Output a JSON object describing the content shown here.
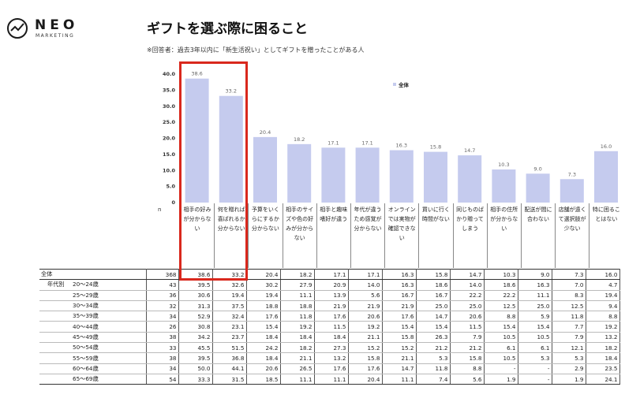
{
  "brand": {
    "name": "NEO",
    "sub": "MARKETING"
  },
  "title": "ギフトを選ぶ際に困ること",
  "note": "※回答者：過去3年以内に「新生活祝い」としてギフトを贈ったことがある人",
  "colors": {
    "bar": "#c5cbee",
    "highlight": "#d9281d",
    "brand": "#1a1a1a"
  },
  "chart_data": {
    "type": "bar",
    "categories": [
      "相手の好みが分からない",
      "何を贈れば喜ばれるか分からない",
      "予算をいくらにするか分からない",
      "相手のサイズや色の好みが分からない",
      "相手と趣味嗜好が違う",
      "年代が違うため感覚が分からない",
      "オンラインでは実物が確認できない",
      "買いに行く時間がない",
      "同じものばかり贈ってしまう",
      "相手の住所が分からない",
      "配送が間に合わない",
      "店舗が遠くて選択肢が少ない",
      "特に困ることはない"
    ],
    "series": [
      {
        "name": "全体",
        "values": [
          38.6,
          33.2,
          20.4,
          18.2,
          17.1,
          17.1,
          16.3,
          15.8,
          14.7,
          10.3,
          9.0,
          7.3,
          16.0
        ]
      }
    ],
    "value_labels": [
      "38.6",
      "33.2",
      "20.4",
      "18.2",
      "17.1",
      "17.1",
      "16.3",
      "15.8",
      "14.7",
      "10.3",
      "9.0",
      "7.3",
      "16.0"
    ],
    "ylim": [
      0,
      40
    ],
    "yticks": [
      "40.0",
      "35.0",
      "30.0",
      "25.0",
      "20.0",
      "15.0",
      "10.0",
      "5.0",
      "0"
    ],
    "legend": "全体",
    "legend_position": "top-right"
  },
  "table": {
    "n_label": "n",
    "group_label": "年代別",
    "rows": [
      {
        "segment": "全体",
        "n": "368",
        "values": [
          "38.6",
          "33.2",
          "20.4",
          "18.2",
          "17.1",
          "17.1",
          "16.3",
          "15.8",
          "14.7",
          "10.3",
          "9.0",
          "7.3",
          "16.0"
        ]
      },
      {
        "segment": "20～24歳",
        "n": "43",
        "values": [
          "39.5",
          "32.6",
          "30.2",
          "27.9",
          "20.9",
          "14.0",
          "16.3",
          "18.6",
          "14.0",
          "18.6",
          "16.3",
          "7.0",
          "4.7"
        ]
      },
      {
        "segment": "25～29歳",
        "n": "36",
        "values": [
          "30.6",
          "19.4",
          "19.4",
          "11.1",
          "13.9",
          "5.6",
          "16.7",
          "16.7",
          "22.2",
          "22.2",
          "11.1",
          "8.3",
          "19.4"
        ]
      },
      {
        "segment": "30～34歳",
        "n": "32",
        "values": [
          "31.3",
          "37.5",
          "18.8",
          "18.8",
          "21.9",
          "21.9",
          "21.9",
          "25.0",
          "25.0",
          "12.5",
          "25.0",
          "12.5",
          "9.4"
        ]
      },
      {
        "segment": "35～39歳",
        "n": "34",
        "values": [
          "52.9",
          "32.4",
          "17.6",
          "11.8",
          "17.6",
          "20.6",
          "17.6",
          "14.7",
          "20.6",
          "8.8",
          "5.9",
          "11.8",
          "8.8"
        ]
      },
      {
        "segment": "40～44歳",
        "n": "26",
        "values": [
          "30.8",
          "23.1",
          "15.4",
          "19.2",
          "11.5",
          "19.2",
          "15.4",
          "15.4",
          "11.5",
          "15.4",
          "15.4",
          "7.7",
          "19.2"
        ]
      },
      {
        "segment": "45～49歳",
        "n": "38",
        "values": [
          "34.2",
          "23.7",
          "18.4",
          "18.4",
          "18.4",
          "21.1",
          "15.8",
          "26.3",
          "7.9",
          "10.5",
          "10.5",
          "7.9",
          "13.2"
        ]
      },
      {
        "segment": "50～54歳",
        "n": "33",
        "values": [
          "45.5",
          "51.5",
          "24.2",
          "18.2",
          "27.3",
          "15.2",
          "15.2",
          "21.2",
          "21.2",
          "6.1",
          "6.1",
          "12.1",
          "18.2"
        ]
      },
      {
        "segment": "55～59歳",
        "n": "38",
        "values": [
          "39.5",
          "36.8",
          "18.4",
          "21.1",
          "13.2",
          "15.8",
          "21.1",
          "5.3",
          "15.8",
          "10.5",
          "5.3",
          "5.3",
          "18.4"
        ]
      },
      {
        "segment": "60～64歳",
        "n": "34",
        "values": [
          "50.0",
          "44.1",
          "20.6",
          "26.5",
          "17.6",
          "17.6",
          "14.7",
          "11.8",
          "8.8",
          "-",
          "-",
          "2.9",
          "23.5"
        ]
      },
      {
        "segment": "65～69歳",
        "n": "54",
        "values": [
          "33.3",
          "31.5",
          "18.5",
          "11.1",
          "11.1",
          "20.4",
          "11.1",
          "7.4",
          "5.6",
          "1.9",
          "-",
          "1.9",
          "24.1"
        ]
      }
    ]
  }
}
